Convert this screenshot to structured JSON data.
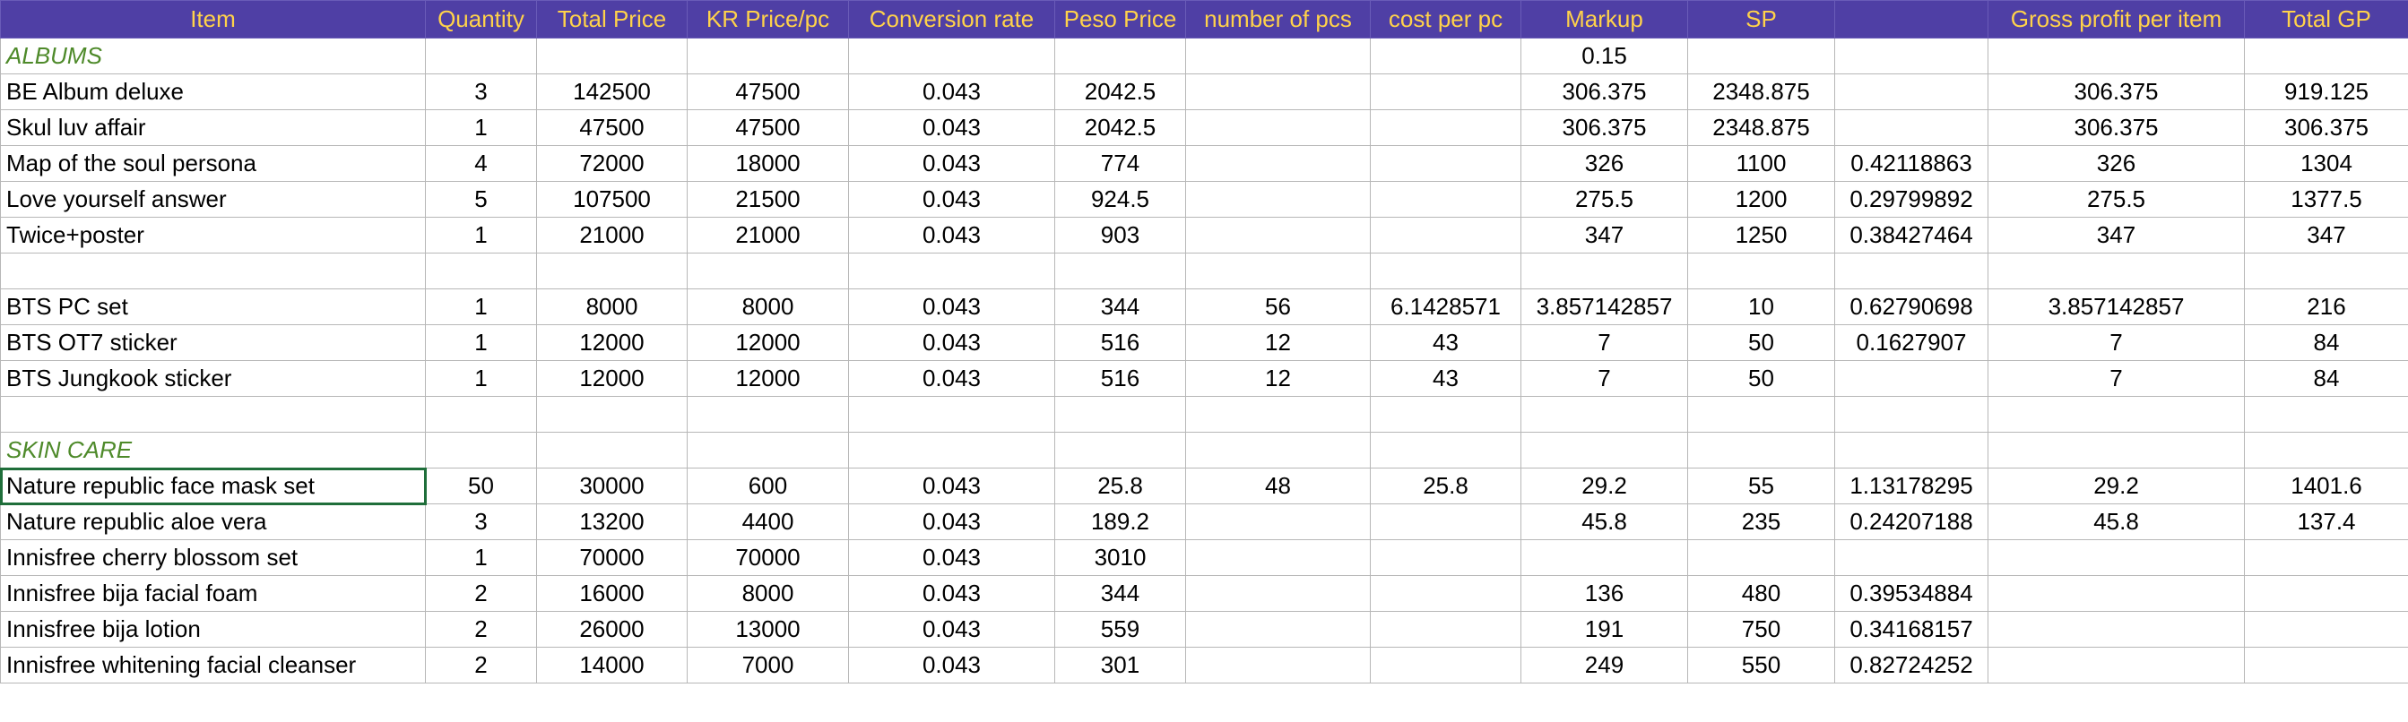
{
  "spreadsheet": {
    "columns": [
      "Item",
      "Quantity",
      "Total Price",
      "KR Price/pc",
      "Conversion rate",
      "Peso Price",
      "number of pcs",
      "cost per pc",
      "Markup",
      "SP",
      "",
      "Gross profit per item",
      "Total GP"
    ],
    "rows": [
      {
        "kind": "section",
        "cells": [
          "ALBUMS",
          "",
          "",
          "",
          "",
          "",
          "",
          "",
          "0.15",
          "",
          "",
          "",
          ""
        ]
      },
      {
        "kind": "data",
        "cells": [
          "BE Album deluxe",
          "3",
          "142500",
          "47500",
          "0.043",
          "2042.5",
          "",
          "",
          "306.375",
          "2348.875",
          "",
          "306.375",
          "919.125"
        ]
      },
      {
        "kind": "data",
        "cells": [
          "Skul luv affair",
          "1",
          "47500",
          "47500",
          "0.043",
          "2042.5",
          "",
          "",
          "306.375",
          "2348.875",
          "",
          "306.375",
          "306.375"
        ]
      },
      {
        "kind": "data",
        "cells": [
          "Map of the soul persona",
          "4",
          "72000",
          "18000",
          "0.043",
          "774",
          "",
          "",
          "326",
          "1100",
          "0.42118863",
          "326",
          "1304"
        ]
      },
      {
        "kind": "data",
        "cells": [
          "Love yourself answer",
          "5",
          "107500",
          "21500",
          "0.043",
          "924.5",
          "",
          "",
          "275.5",
          "1200",
          "0.29799892",
          "275.5",
          "1377.5"
        ]
      },
      {
        "kind": "data",
        "cells": [
          "Twice+poster",
          "1",
          "21000",
          "21000",
          "0.043",
          "903",
          "",
          "",
          "347",
          "1250",
          "0.38427464",
          "347",
          "347"
        ]
      },
      {
        "kind": "blank",
        "cells": [
          "",
          "",
          "",
          "",
          "",
          "",
          "",
          "",
          "",
          "",
          "",
          "",
          ""
        ]
      },
      {
        "kind": "data",
        "cells": [
          "BTS PC set",
          "1",
          "8000",
          "8000",
          "0.043",
          "344",
          "56",
          "6.1428571",
          "3.857142857",
          "10",
          "0.62790698",
          "3.857142857",
          "216"
        ]
      },
      {
        "kind": "data",
        "cells": [
          "BTS OT7 sticker",
          "1",
          "12000",
          "12000",
          "0.043",
          "516",
          "12",
          "43",
          "7",
          "50",
          "0.1627907",
          "7",
          "84"
        ]
      },
      {
        "kind": "data",
        "cells": [
          "BTS Jungkook sticker",
          "1",
          "12000",
          "12000",
          "0.043",
          "516",
          "12",
          "43",
          "7",
          "50",
          "",
          "7",
          "84"
        ]
      },
      {
        "kind": "blank",
        "cells": [
          "",
          "",
          "",
          "",
          "",
          "",
          "",
          "",
          "",
          "",
          "",
          "",
          ""
        ]
      },
      {
        "kind": "section",
        "cells": [
          "SKIN CARE",
          "",
          "",
          "",
          "",
          "",
          "",
          "",
          "",
          "",
          "",
          "",
          ""
        ]
      },
      {
        "kind": "data",
        "selected": true,
        "cells": [
          "Nature republic face mask set",
          "50",
          "30000",
          "600",
          "0.043",
          "25.8",
          "48",
          "25.8",
          "29.2",
          "55",
          "1.13178295",
          "29.2",
          "1401.6"
        ]
      },
      {
        "kind": "data",
        "cells": [
          "Nature republic aloe vera",
          "3",
          "13200",
          "4400",
          "0.043",
          "189.2",
          "",
          "",
          "45.8",
          "235",
          "0.24207188",
          "45.8",
          "137.4"
        ]
      },
      {
        "kind": "data",
        "cells": [
          "Innisfree cherry blossom set",
          "1",
          "70000",
          "70000",
          "0.043",
          "3010",
          "",
          "",
          "",
          "",
          "",
          "",
          ""
        ]
      },
      {
        "kind": "data",
        "cells": [
          "Innisfree bija facial foam",
          "2",
          "16000",
          "8000",
          "0.043",
          "344",
          "",
          "",
          "136",
          "480",
          "0.39534884",
          "",
          ""
        ]
      },
      {
        "kind": "data",
        "cells": [
          "Innisfree bija lotion",
          "2",
          "26000",
          "13000",
          "0.043",
          "559",
          "",
          "",
          "191",
          "750",
          "0.34168157",
          "",
          ""
        ]
      },
      {
        "kind": "data",
        "cells": [
          "Innisfree whitening facial cleanser",
          "2",
          "14000",
          "7000",
          "0.043",
          "301",
          "",
          "",
          "249",
          "550",
          "0.82724252",
          "",
          ""
        ]
      }
    ]
  }
}
